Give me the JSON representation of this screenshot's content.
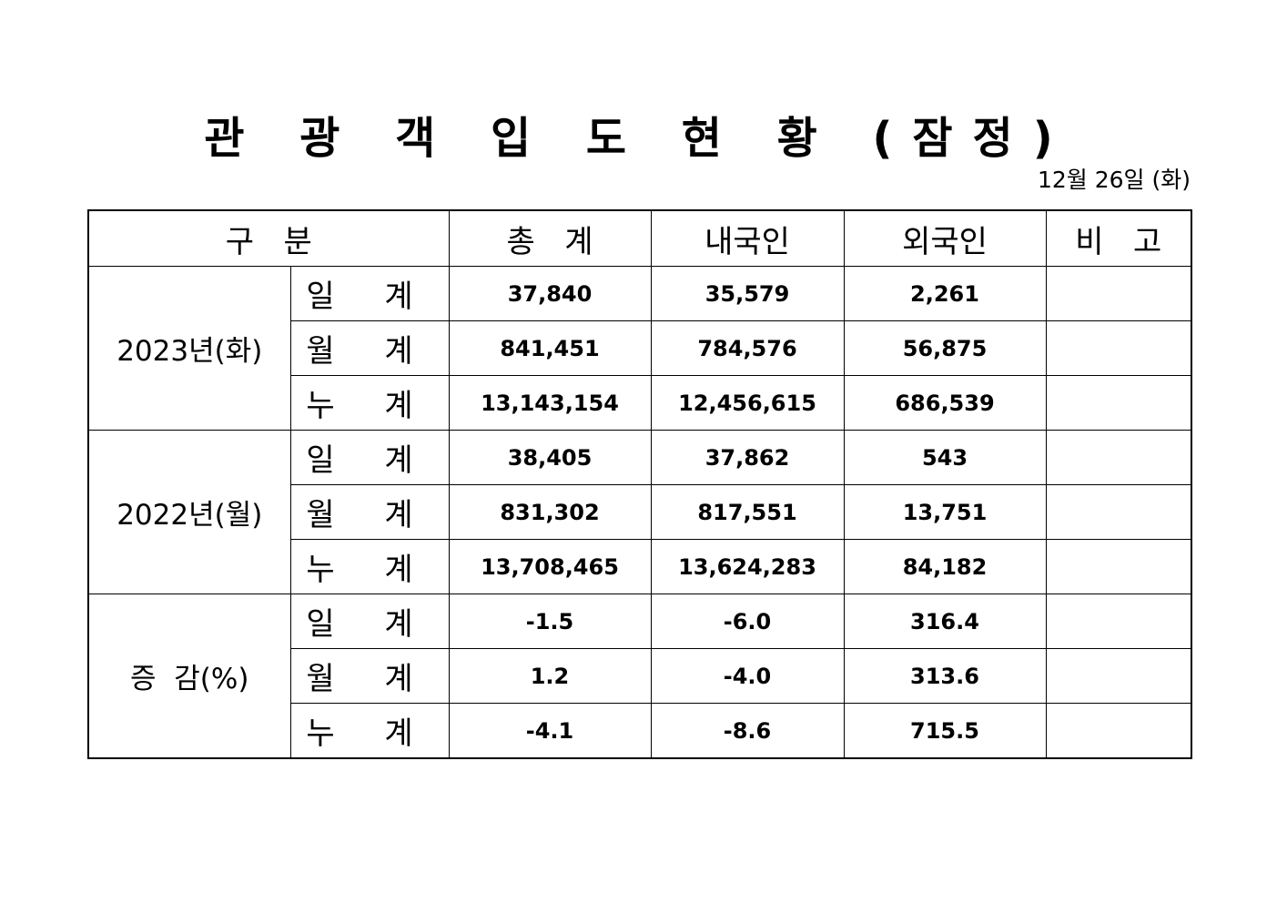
{
  "title": "관 광 객 입 도 현 황 (잠정)",
  "date": "12월 26일 (화)",
  "headers": {
    "category": "구   분",
    "total": "총   계",
    "domestic": "내국인",
    "foreign": "외국인",
    "note": "비   고"
  },
  "groups": [
    {
      "label": "2023년(화)",
      "rows": [
        {
          "sub": "일 계",
          "total": "37,840",
          "domestic": "35,579",
          "foreign": "2,261",
          "note": ""
        },
        {
          "sub": "월 계",
          "total": "841,451",
          "domestic": "784,576",
          "foreign": "56,875",
          "note": ""
        },
        {
          "sub": "누 계",
          "total": "13,143,154",
          "domestic": "12,456,615",
          "foreign": "686,539",
          "note": ""
        }
      ]
    },
    {
      "label": "2022년(월)",
      "rows": [
        {
          "sub": "일 계",
          "total": "38,405",
          "domestic": "37,862",
          "foreign": "543",
          "note": ""
        },
        {
          "sub": "월 계",
          "total": "831,302",
          "domestic": "817,551",
          "foreign": "13,751",
          "note": ""
        },
        {
          "sub": "누 계",
          "total": "13,708,465",
          "domestic": "13,624,283",
          "foreign": "84,182",
          "note": ""
        }
      ]
    },
    {
      "label": "증  감(%)",
      "rows": [
        {
          "sub": "일 계",
          "total": "-1.5",
          "domestic": "-6.0",
          "foreign": "316.4",
          "note": ""
        },
        {
          "sub": "월 계",
          "total": "1.2",
          "domestic": "-4.0",
          "foreign": "313.6",
          "note": ""
        },
        {
          "sub": "누 계",
          "total": "-4.1",
          "domestic": "-8.6",
          "foreign": "715.5",
          "note": ""
        }
      ]
    }
  ]
}
